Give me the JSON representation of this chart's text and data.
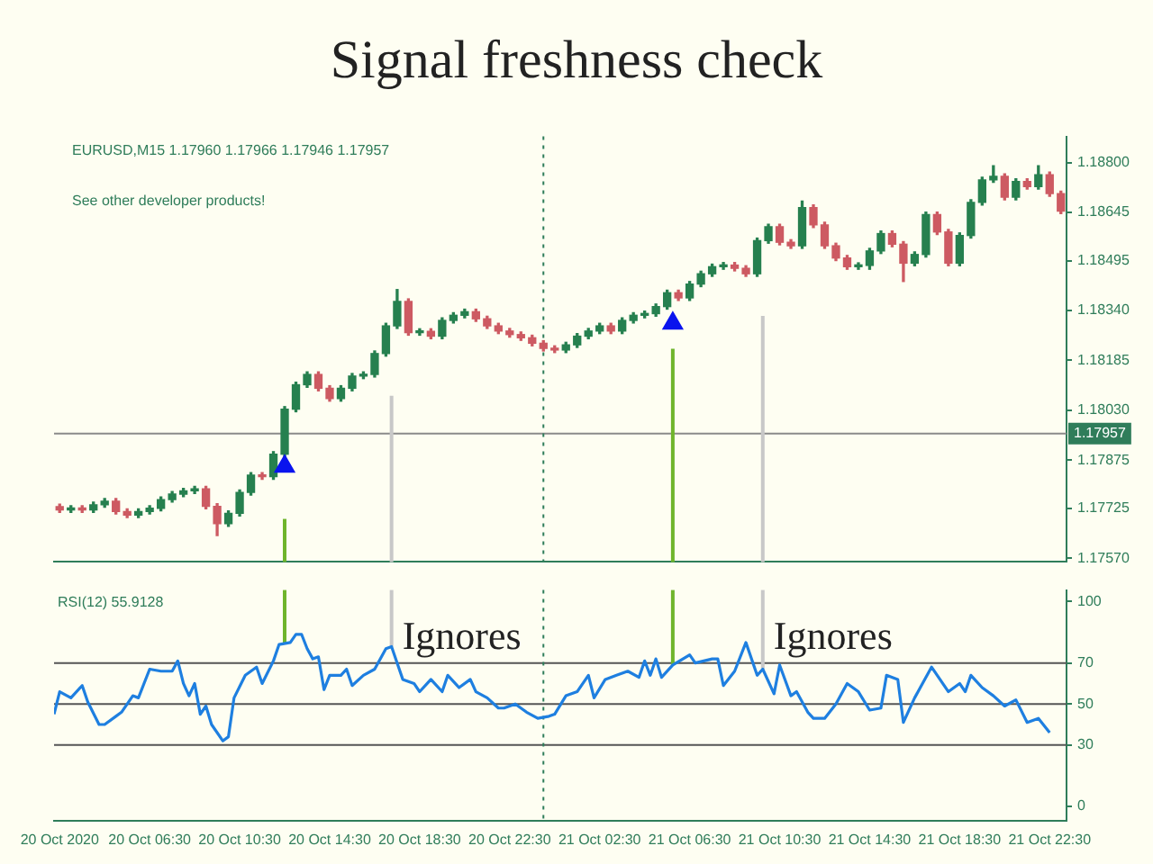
{
  "chart_data": [
    {
      "type": "candlestick",
      "title": "Signal freshness check",
      "annotations": [
        "EURUSD,M15 1.17960 1.17966 1.17946 1.17957",
        "See other developer products!"
      ],
      "x": [
        "2020-10-20T02:30",
        "2020-10-20T03:00",
        "2020-10-20T03:30",
        "2020-10-20T04:00",
        "2020-10-20T04:30",
        "2020-10-20T05:00",
        "2020-10-20T05:30",
        "2020-10-20T06:00",
        "2020-10-20T06:30",
        "2020-10-20T07:00",
        "2020-10-20T07:30",
        "2020-10-20T08:00",
        "2020-10-20T08:30",
        "2020-10-20T09:00",
        "2020-10-20T09:30",
        "2020-10-20T10:00",
        "2020-10-20T10:30",
        "2020-10-20T11:00",
        "2020-10-20T11:30",
        "2020-10-20T12:00",
        "2020-10-20T12:30",
        "2020-10-20T13:00",
        "2020-10-20T13:30",
        "2020-10-20T14:00",
        "2020-10-20T14:30",
        "2020-10-20T15:00",
        "2020-10-20T15:30",
        "2020-10-20T16:00",
        "2020-10-20T16:30",
        "2020-10-20T17:00",
        "2020-10-20T17:30",
        "2020-10-20T18:00",
        "2020-10-20T18:30",
        "2020-10-20T19:00",
        "2020-10-20T19:30",
        "2020-10-20T20:00",
        "2020-10-20T20:30",
        "2020-10-20T21:00",
        "2020-10-20T21:30",
        "2020-10-20T22:00",
        "2020-10-20T22:30",
        "2020-10-20T23:00",
        "2020-10-20T23:30",
        "2020-10-21T00:00",
        "2020-10-21T00:30",
        "2020-10-21T01:00",
        "2020-10-21T01:30",
        "2020-10-21T02:00",
        "2020-10-21T02:30",
        "2020-10-21T03:00",
        "2020-10-21T03:30",
        "2020-10-21T04:00",
        "2020-10-21T04:30",
        "2020-10-21T05:00",
        "2020-10-21T05:30",
        "2020-10-21T06:00",
        "2020-10-21T06:30",
        "2020-10-21T07:00",
        "2020-10-21T07:30",
        "2020-10-21T08:00",
        "2020-10-21T08:30",
        "2020-10-21T09:00",
        "2020-10-21T09:30",
        "2020-10-21T10:00",
        "2020-10-21T10:30",
        "2020-10-21T11:00",
        "2020-10-21T11:30",
        "2020-10-21T12:00",
        "2020-10-21T12:30",
        "2020-10-21T13:00",
        "2020-10-21T13:30",
        "2020-10-21T14:00",
        "2020-10-21T14:30",
        "2020-10-21T15:00",
        "2020-10-21T15:30",
        "2020-10-21T16:00",
        "2020-10-21T16:30",
        "2020-10-21T17:00",
        "2020-10-21T17:30",
        "2020-10-21T18:00",
        "2020-10-21T18:30",
        "2020-10-21T19:00",
        "2020-10-21T19:30",
        "2020-10-21T20:00",
        "2020-10-21T20:30",
        "2020-10-21T21:00",
        "2020-10-21T21:30",
        "2020-10-21T22:00",
        "2020-10-21T22:30",
        "2020-10-21T23:00"
      ],
      "ohlc": [
        [
          1.1773,
          1.17738,
          1.17712,
          1.1772
        ],
        [
          1.1772,
          1.17733,
          1.17712,
          1.17725
        ],
        [
          1.17725,
          1.17733,
          1.17712,
          1.1772
        ],
        [
          1.1772,
          1.17744,
          1.17712,
          1.17736
        ],
        [
          1.17736,
          1.17755,
          1.17728,
          1.17747
        ],
        [
          1.17747,
          1.17755,
          1.17707,
          1.17715
        ],
        [
          1.17715,
          1.17723,
          1.17696,
          1.17704
        ],
        [
          1.17704,
          1.17723,
          1.17696,
          1.17715
        ],
        [
          1.17715,
          1.17733,
          1.17707,
          1.17725
        ],
        [
          1.17725,
          1.1776,
          1.17717,
          1.17752
        ],
        [
          1.17752,
          1.17777,
          1.17744,
          1.17769
        ],
        [
          1.17769,
          1.17787,
          1.17761,
          1.17779
        ],
        [
          1.17779,
          1.17793,
          1.17771,
          1.17785
        ],
        [
          1.17785,
          1.17793,
          1.17723,
          1.17731
        ],
        [
          1.17731,
          1.17739,
          1.1764,
          1.17677
        ],
        [
          1.17677,
          1.17717,
          1.17669,
          1.17709
        ],
        [
          1.17709,
          1.17782,
          1.17701,
          1.17774
        ],
        [
          1.17774,
          1.17836,
          1.17766,
          1.17828
        ],
        [
          1.17828,
          1.17836,
          1.17815,
          1.17823
        ],
        [
          1.17823,
          1.17901,
          1.17815,
          1.17893
        ],
        [
          1.17893,
          1.18041,
          1.17885,
          1.18033
        ],
        [
          1.18033,
          1.18117,
          1.18025,
          1.18109
        ],
        [
          1.18109,
          1.18149,
          1.18101,
          1.18141
        ],
        [
          1.18141,
          1.18149,
          1.1809,
          1.18098
        ],
        [
          1.18098,
          1.18106,
          1.18058,
          1.18066
        ],
        [
          1.18066,
          1.18106,
          1.18058,
          1.18098
        ],
        [
          1.18098,
          1.18144,
          1.1809,
          1.18136
        ],
        [
          1.18136,
          1.18149,
          1.18128,
          1.18141
        ],
        [
          1.18141,
          1.18214,
          1.18133,
          1.18206
        ],
        [
          1.18206,
          1.183,
          1.18198,
          1.18292
        ],
        [
          1.18292,
          1.18405,
          1.18284,
          1.18368
        ],
        [
          1.18368,
          1.18376,
          1.18263,
          1.18271
        ],
        [
          1.18271,
          1.18283,
          1.18263,
          1.18275
        ],
        [
          1.18275,
          1.18283,
          1.18252,
          1.1826
        ],
        [
          1.1826,
          1.18317,
          1.18252,
          1.18309
        ],
        [
          1.18309,
          1.18333,
          1.18301,
          1.18325
        ],
        [
          1.18325,
          1.18344,
          1.18317,
          1.18336
        ],
        [
          1.18336,
          1.18344,
          1.18306,
          1.18314
        ],
        [
          1.18314,
          1.18322,
          1.18284,
          1.18292
        ],
        [
          1.18292,
          1.183,
          1.18268,
          1.18276
        ],
        [
          1.18276,
          1.18284,
          1.18257,
          1.18265
        ],
        [
          1.18265,
          1.18273,
          1.18247,
          1.18255
        ],
        [
          1.18255,
          1.18263,
          1.1823,
          1.18238
        ],
        [
          1.18238,
          1.18246,
          1.18214,
          1.18222
        ],
        [
          1.18222,
          1.1823,
          1.18209,
          1.18217
        ],
        [
          1.18217,
          1.18241,
          1.18209,
          1.18233
        ],
        [
          1.18233,
          1.18268,
          1.18225,
          1.1826
        ],
        [
          1.1826,
          1.18284,
          1.18252,
          1.18276
        ],
        [
          1.18276,
          1.183,
          1.18268,
          1.18292
        ],
        [
          1.18292,
          1.183,
          1.18268,
          1.18276
        ],
        [
          1.18276,
          1.18317,
          1.18268,
          1.18309
        ],
        [
          1.18309,
          1.18333,
          1.18301,
          1.18325
        ],
        [
          1.18325,
          1.18338,
          1.18317,
          1.1833
        ],
        [
          1.1833,
          1.1836,
          1.18322,
          1.18352
        ],
        [
          1.18352,
          1.18403,
          1.18344,
          1.18395
        ],
        [
          1.18395,
          1.18403,
          1.18371,
          1.18379
        ],
        [
          1.18379,
          1.1843,
          1.18371,
          1.18422
        ],
        [
          1.18422,
          1.18462,
          1.18414,
          1.18454
        ],
        [
          1.18454,
          1.18484,
          1.18446,
          1.18476
        ],
        [
          1.18476,
          1.18489,
          1.18468,
          1.18481
        ],
        [
          1.18481,
          1.18489,
          1.18463,
          1.18471
        ],
        [
          1.18471,
          1.18479,
          1.18446,
          1.18454
        ],
        [
          1.18454,
          1.18565,
          1.18446,
          1.18557
        ],
        [
          1.18557,
          1.18608,
          1.18549,
          1.186
        ],
        [
          1.186,
          1.18608,
          1.18544,
          1.18552
        ],
        [
          1.18552,
          1.1856,
          1.18533,
          1.18541
        ],
        [
          1.18541,
          1.1868,
          1.18533,
          1.1866
        ],
        [
          1.1866,
          1.18668,
          1.18598,
          1.18606
        ],
        [
          1.18606,
          1.18614,
          1.18533,
          1.18541
        ],
        [
          1.18541,
          1.18549,
          1.18495,
          1.18503
        ],
        [
          1.18503,
          1.18511,
          1.18468,
          1.18476
        ],
        [
          1.18476,
          1.18488,
          1.18468,
          1.1848
        ],
        [
          1.1848,
          1.18533,
          1.18468,
          1.18525
        ],
        [
          1.18525,
          1.18587,
          1.18517,
          1.18579
        ],
        [
          1.18579,
          1.18587,
          1.18538,
          1.18546
        ],
        [
          1.18546,
          1.18554,
          1.1843,
          1.18487
        ],
        [
          1.18487,
          1.18522,
          1.18479,
          1.18514
        ],
        [
          1.18514,
          1.18646,
          1.18506,
          1.18638
        ],
        [
          1.18638,
          1.18646,
          1.18576,
          1.18584
        ],
        [
          1.18584,
          1.18592,
          1.18479,
          1.18487
        ],
        [
          1.18487,
          1.18581,
          1.18479,
          1.18573
        ],
        [
          1.18573,
          1.18684,
          1.18565,
          1.18676
        ],
        [
          1.18676,
          1.18754,
          1.18668,
          1.18746
        ],
        [
          1.18746,
          1.1879,
          1.18738,
          1.18757
        ],
        [
          1.18757,
          1.18765,
          1.18684,
          1.18692
        ],
        [
          1.18692,
          1.18749,
          1.18684,
          1.18741
        ],
        [
          1.18741,
          1.18749,
          1.18717,
          1.18725
        ],
        [
          1.18725,
          1.1879,
          1.18717,
          1.18762
        ],
        [
          1.18762,
          1.1877,
          1.18695,
          1.18703
        ],
        [
          1.18703,
          1.18711,
          1.18641,
          1.18649
        ]
      ],
      "colors": [
        "#cd5a62",
        "#26804f",
        "#cd5a62",
        "#26804f",
        "#26804f",
        "#cd5a62",
        "#cd5a62",
        "#26804f",
        "#26804f",
        "#26804f",
        "#26804f",
        "#26804f",
        "#26804f",
        "#cd5a62",
        "#cd5a62",
        "#26804f",
        "#26804f",
        "#26804f",
        "#cd5a62",
        "#26804f",
        "#26804f",
        "#26804f",
        "#26804f",
        "#cd5a62",
        "#cd5a62",
        "#26804f",
        "#26804f",
        "#26804f",
        "#26804f",
        "#26804f",
        "#26804f",
        "#cd5a62",
        "#26804f",
        "#cd5a62",
        "#26804f",
        "#26804f",
        "#26804f",
        "#cd5a62",
        "#cd5a62",
        "#cd5a62",
        "#cd5a62",
        "#cd5a62",
        "#cd5a62",
        "#cd5a62",
        "#cd5a62",
        "#26804f",
        "#26804f",
        "#26804f",
        "#26804f",
        "#cd5a62",
        "#26804f",
        "#26804f",
        "#26804f",
        "#26804f",
        "#26804f",
        "#cd5a62",
        "#26804f",
        "#26804f",
        "#26804f",
        "#26804f",
        "#cd5a62",
        "#cd5a62",
        "#26804f",
        "#26804f",
        "#cd5a62",
        "#cd5a62",
        "#26804f",
        "#cd5a62",
        "#cd5a62",
        "#cd5a62",
        "#cd5a62",
        "#26804f",
        "#26804f",
        "#26804f",
        "#cd5a62",
        "#cd5a62",
        "#26804f",
        "#26804f",
        "#cd5a62",
        "#cd5a62",
        "#26804f",
        "#26804f",
        "#26804f",
        "#26804f",
        "#cd5a62",
        "#26804f",
        "#cd5a62",
        "#26804f",
        "#cd5a62",
        "#cd5a62"
      ],
      "series": [
        {
          "type": "scatter",
          "x": [
            "2020-10-20T12:30",
            "2020-10-21T05:45"
          ],
          "values": [
            1.17855,
            1.183
          ],
          "color": "#0a14ee",
          "marker": "triangle"
        }
      ],
      "xlim": [
        "2020-10-20T02:15",
        "2020-10-21T23:15"
      ],
      "ylim": [
        1.17558,
        1.18881
      ],
      "yticks": [
        {
          "value": 1.1757,
          "label": "1.17570"
        },
        1.17725,
        1.17875,
        {
          "value": 1.1803,
          "label": "1.18030"
        },
        1.18185,
        {
          "value": 1.1834,
          "label": "1.18340"
        },
        1.18495,
        1.18645,
        {
          "value": 1.188,
          "label": "1.18800"
        }
      ],
      "tick_labels": "y",
      "ref_lines": [
        {
          "axis": "y",
          "value": 1.17957,
          "label": "1.17957",
          "color": "#8a8a8a"
        },
        {
          "axis": "x",
          "value": "2020-10-20T12:30",
          "color": "#6fb52c"
        },
        {
          "axis": "x",
          "value": "2020-10-20T17:15",
          "color": "#c8c8c8"
        },
        {
          "axis": "x",
          "value": "2020-10-21T05:45",
          "color": "#6fb52c"
        },
        {
          "axis": "x",
          "value": "2020-10-21T09:45",
          "color": "#c8c8c8"
        },
        {
          "axis": "x",
          "value": "2020-10-21T00:00",
          "color": "#2f7d5a",
          "line_style": "dotted"
        }
      ]
    },
    {
      "type": "line",
      "title": "RSI(12) 55.9128",
      "annotations": [
        {
          "text": "Ignores",
          "x": "2020-10-20T17:15",
          "y": 82
        },
        {
          "text": "Ignores",
          "x": "2020-10-21T09:45",
          "y": 82
        }
      ],
      "x": [
        "2020-10-20T02:15",
        "2020-10-20T02:30",
        "2020-10-20T03:00",
        "2020-10-20T03:30",
        "2020-10-20T03:45",
        "2020-10-20T04:15",
        "2020-10-20T04:30",
        "2020-10-20T05:00",
        "2020-10-20T05:15",
        "2020-10-20T05:45",
        "2020-10-20T06:00",
        "2020-10-20T06:30",
        "2020-10-20T07:00",
        "2020-10-20T07:30",
        "2020-10-20T07:45",
        "2020-10-20T08:00",
        "2020-10-20T08:15",
        "2020-10-20T08:30",
        "2020-10-20T08:45",
        "2020-10-20T09:00",
        "2020-10-20T09:15",
        "2020-10-20T09:45",
        "2020-10-20T10:00",
        "2020-10-20T10:15",
        "2020-10-20T10:45",
        "2020-10-20T11:15",
        "2020-10-20T11:30",
        "2020-10-20T12:00",
        "2020-10-20T12:15",
        "2020-10-20T12:45",
        "2020-10-20T13:00",
        "2020-10-20T13:15",
        "2020-10-20T13:30",
        "2020-10-20T13:45",
        "2020-10-20T14:00",
        "2020-10-20T14:15",
        "2020-10-20T14:30",
        "2020-10-20T15:00",
        "2020-10-20T15:15",
        "2020-10-20T15:30",
        "2020-10-20T16:00",
        "2020-10-20T16:30",
        "2020-10-20T17:00",
        "2020-10-20T17:15",
        "2020-10-20T17:30",
        "2020-10-20T17:45",
        "2020-10-20T18:15",
        "2020-10-20T18:30",
        "2020-10-20T19:00",
        "2020-10-20T19:30",
        "2020-10-20T19:45",
        "2020-10-20T20:15",
        "2020-10-20T20:45",
        "2020-10-20T21:00",
        "2020-10-20T21:30",
        "2020-10-20T22:00",
        "2020-10-20T22:15",
        "2020-10-20T22:45",
        "2020-10-20T23:15",
        "2020-10-20T23:45",
        "2020-10-21T00:15",
        "2020-10-21T00:30",
        "2020-10-21T01:00",
        "2020-10-21T01:30",
        "2020-10-21T02:00",
        "2020-10-21T02:15",
        "2020-10-21T02:45",
        "2020-10-21T03:15",
        "2020-10-21T03:45",
        "2020-10-21T04:15",
        "2020-10-21T04:30",
        "2020-10-21T04:45",
        "2020-10-21T05:00",
        "2020-10-21T05:15",
        "2020-10-21T05:45",
        "2020-10-21T06:30",
        "2020-10-21T06:45",
        "2020-10-21T07:30",
        "2020-10-21T07:45",
        "2020-10-21T08:00",
        "2020-10-21T08:30",
        "2020-10-21T09:00",
        "2020-10-21T09:30",
        "2020-10-21T09:45",
        "2020-10-21T10:15",
        "2020-10-21T10:30",
        "2020-10-21T11:00",
        "2020-10-21T11:15",
        "2020-10-21T11:45",
        "2020-10-21T12:00",
        "2020-10-21T12:30",
        "2020-10-21T13:00",
        "2020-10-21T13:30",
        "2020-10-21T14:00",
        "2020-10-21T14:30",
        "2020-10-21T15:00",
        "2020-10-21T15:15",
        "2020-10-21T15:45",
        "2020-10-21T16:00",
        "2020-10-21T16:30",
        "2020-10-21T17:15",
        "2020-10-21T18:00",
        "2020-10-21T18:30",
        "2020-10-21T18:45",
        "2020-10-21T19:00",
        "2020-10-21T19:30",
        "2020-10-21T20:00",
        "2020-10-21T20:30",
        "2020-10-21T21:00",
        "2020-10-21T21:30",
        "2020-10-21T22:00",
        "2020-10-21T22:30"
      ],
      "series": [
        {
          "color": "#1e7fe0",
          "values": [
            45,
            56,
            53,
            59,
            51,
            40,
            40,
            44,
            46,
            54,
            53,
            67,
            66,
            66,
            71,
            60,
            54,
            60,
            45,
            49,
            40,
            32,
            34,
            53,
            64,
            68,
            60,
            71,
            79,
            80,
            84,
            84,
            77,
            72,
            73,
            57,
            64,
            64,
            67,
            59,
            64,
            67,
            77,
            78,
            70,
            62,
            60,
            56,
            62,
            56,
            64,
            58,
            62,
            56,
            53,
            48,
            48,
            50,
            46,
            43,
            44,
            45,
            54,
            56,
            64,
            53,
            62,
            64,
            66,
            63,
            71,
            64,
            72,
            63,
            69,
            74,
            70,
            72,
            72,
            59,
            66,
            80,
            64,
            67,
            55,
            69,
            54,
            56,
            46,
            43,
            43,
            50,
            60,
            56,
            47,
            48,
            64,
            62,
            41,
            53,
            68,
            56,
            60,
            56,
            64,
            58,
            54,
            49,
            52,
            41,
            43,
            36
          ]
        }
      ],
      "xlim": [
        "2020-10-20T02:15",
        "2020-10-21T23:15"
      ],
      "ylim": [
        -7,
        105.6
      ],
      "xticks": [
        {
          "value": "2020-10-20T02:30",
          "label": "20 Oct 2020"
        },
        {
          "value": "2020-10-20T06:30",
          "label": "20 Oct 06:30"
        },
        {
          "value": "2020-10-20T10:30",
          "label": "20 Oct 10:30"
        },
        {
          "value": "2020-10-20T14:30",
          "label": "20 Oct 14:30"
        },
        {
          "value": "2020-10-20T18:30",
          "label": "20 Oct 18:30"
        },
        {
          "value": "2020-10-20T22:30",
          "label": "20 Oct 22:30"
        },
        {
          "value": "2020-10-21T02:30",
          "label": "21 Oct 02:30"
        },
        {
          "value": "2020-10-21T06:30",
          "label": "21 Oct 06:30"
        },
        {
          "value": "2020-10-21T10:30",
          "label": "21 Oct 10:30"
        },
        {
          "value": "2020-10-21T14:30",
          "label": "21 Oct 14:30"
        },
        {
          "value": "2020-10-21T18:30",
          "label": "21 Oct 18:30"
        },
        {
          "value": "2020-10-21T22:30",
          "label": "21 Oct 22:30"
        }
      ],
      "yticks": [
        0,
        30,
        50,
        70,
        100
      ],
      "ref_lines": [
        {
          "axis": "y",
          "value": 30,
          "color": "#555555"
        },
        {
          "axis": "y",
          "value": 50,
          "color": "#555555"
        },
        {
          "axis": "y",
          "value": 70,
          "color": "#555555"
        },
        {
          "axis": "x",
          "value": "2020-10-20T12:30",
          "color": "#6fb52c"
        },
        {
          "axis": "x",
          "value": "2020-10-20T17:15",
          "color": "#c8c8c8"
        },
        {
          "axis": "x",
          "value": "2020-10-21T05:45",
          "color": "#6fb52c"
        },
        {
          "axis": "x",
          "value": "2020-10-21T09:45",
          "color": "#c8c8c8"
        },
        {
          "axis": "x",
          "value": "2020-10-21T00:00",
          "color": "#2f7d5a",
          "line_style": "dotted"
        }
      ]
    }
  ]
}
